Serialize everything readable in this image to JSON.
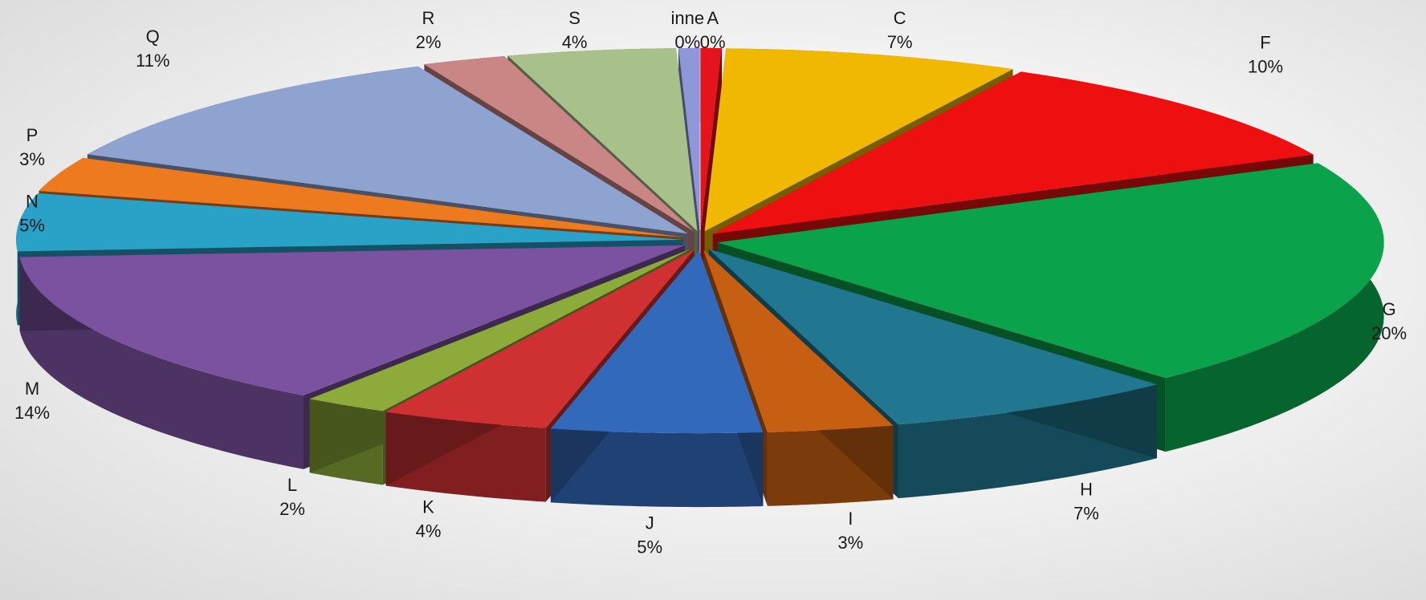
{
  "chart_data": {
    "type": "pie",
    "style": "3d-exploded",
    "title": "",
    "categories": [
      "A",
      "C",
      "F",
      "G",
      "H",
      "I",
      "J",
      "K",
      "L",
      "M",
      "N",
      "P",
      "Q",
      "R",
      "S",
      "inne"
    ],
    "values": [
      0.5,
      7,
      10,
      20,
      7,
      3,
      5,
      4,
      2,
      14,
      5,
      3,
      11,
      2,
      4,
      0.5
    ],
    "labels": [
      "0%",
      "7%",
      "10%",
      "20%",
      "7%",
      "3%",
      "5%",
      "4%",
      "2%",
      "14%",
      "5%",
      "3%",
      "11%",
      "2%",
      "4%",
      "0%"
    ],
    "colors": [
      "#e3141b",
      "#f0b800",
      "#ee1010",
      "#0aa24a",
      "#20778f",
      "#c65f12",
      "#3369bb",
      "#cf3133",
      "#8cab3a",
      "#7a52a0",
      "#2aa2c8",
      "#ee7a20",
      "#8ea3cf",
      "#c98684",
      "#a8c08a",
      "#8f97d8"
    ],
    "legend": "none"
  }
}
